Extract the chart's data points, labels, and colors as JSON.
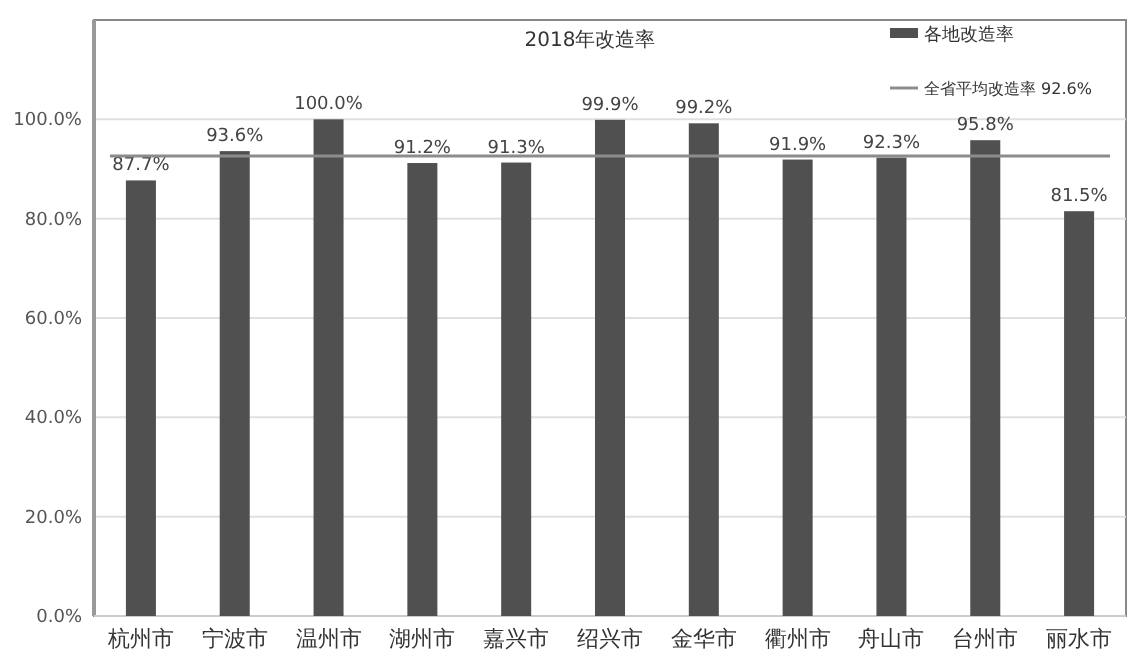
{
  "chart_data": {
    "type": "bar",
    "title": "2018年改造率",
    "categories": [
      "杭州市",
      "宁波市",
      "温州市",
      "湖州市",
      "嘉兴市",
      "绍兴市",
      "金华市",
      "衢州市",
      "舟山市",
      "台州市",
      "丽水市"
    ],
    "series": [
      {
        "name": "各地改造率",
        "color": "#505050",
        "values": [
          87.7,
          93.6,
          100.0,
          91.2,
          91.3,
          99.9,
          99.2,
          91.9,
          92.3,
          95.8,
          81.5
        ],
        "value_labels": [
          "87.7%",
          "93.6%",
          "100.0%",
          "91.2%",
          "91.3%",
          "99.9%",
          "99.2%",
          "91.9%",
          "92.3%",
          "95.8%",
          "81.5%"
        ]
      }
    ],
    "ylim": [
      0,
      120
    ],
    "yticks": [
      {
        "value": 0,
        "label": "0.0%"
      },
      {
        "value": 20,
        "label": "20.0%"
      },
      {
        "value": 40,
        "label": "40.0%"
      },
      {
        "value": 60,
        "label": "60.0%"
      },
      {
        "value": 80,
        "label": "80.0%"
      },
      {
        "value": 100,
        "label": "100.0%"
      }
    ],
    "ref_lines": [
      {
        "axis": "y",
        "value": 92.6,
        "label": "全省平均改造率 92.6%",
        "color": "#8c8c8c"
      }
    ],
    "grid": "y",
    "legend": "top right"
  }
}
